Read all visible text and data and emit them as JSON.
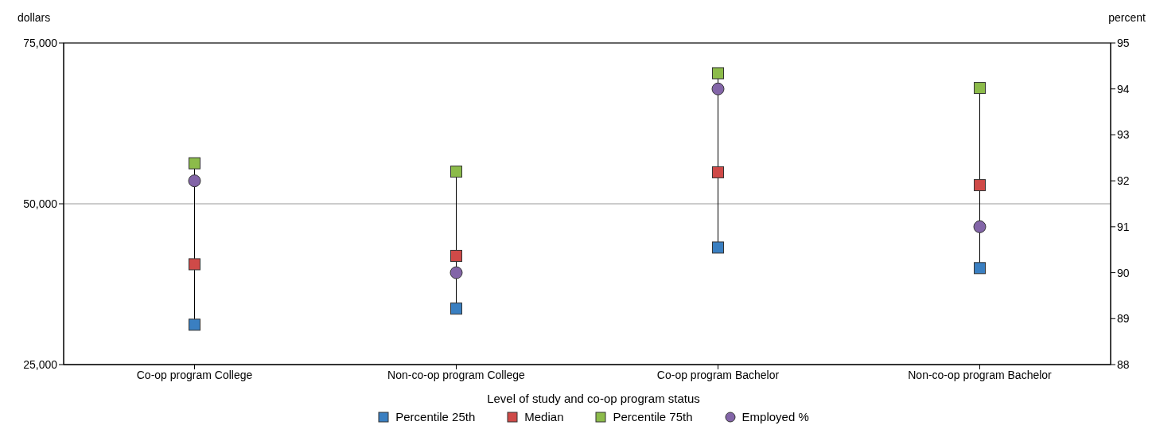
{
  "chart_data": {
    "type": "scatter",
    "xlabel": "Level of study and co-op program status",
    "ylabel": "dollars",
    "y2label": "percent",
    "categories": [
      "Co-op program College",
      "Non-co-op program College",
      "Co-op program Bachelor",
      "Non-co-op program Bachelor"
    ],
    "series": [
      {
        "name": "Percentile 25th",
        "color": "#3a7fc1",
        "marker": "square",
        "values": [
          31200,
          33700,
          43200,
          40000
        ]
      },
      {
        "name": "Median",
        "color": "#cf4a48",
        "marker": "square",
        "values": [
          40600,
          41900,
          54900,
          52900
        ]
      },
      {
        "name": "Percentile 75th",
        "color": "#8cbb4a",
        "marker": "square",
        "values": [
          56300,
          55000,
          70300,
          68000
        ]
      },
      {
        "name": "Employed %",
        "color": "#8365a8",
        "marker": "circle",
        "axis": "y2",
        "values": [
          92.0,
          90.0,
          94.0,
          91.0
        ]
      }
    ],
    "ylim": [
      25000,
      75000
    ],
    "yticks": [
      {
        "value": 25000,
        "label": "25,000"
      },
      {
        "value": 50000,
        "label": "50,000"
      },
      {
        "value": 75000,
        "label": "75,000"
      }
    ],
    "y2lim": [
      88,
      95
    ],
    "y2ticks": [
      88,
      89,
      90,
      91,
      92,
      93,
      94,
      95
    ],
    "grid": "y",
    "legend": "bottom"
  }
}
